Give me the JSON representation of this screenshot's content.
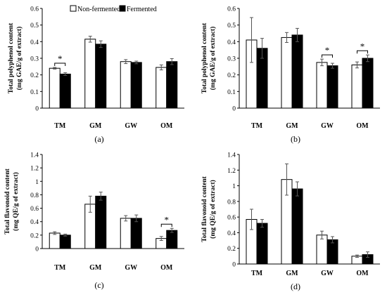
{
  "legend": {
    "non_fermented": "Non-fermented",
    "fermented": "Fermented"
  },
  "colors": {
    "non_fermented": "#ffffff",
    "fermented": "#000000",
    "axis": "#000000"
  },
  "chart_data": [
    {
      "type": "bar",
      "panel_label": "(a)",
      "ylabel_line1": "Total polyphenol content",
      "ylabel_line2": "(mg GAE/g of extract)",
      "categories": [
        "TM",
        "GM",
        "GW",
        "OM"
      ],
      "ylim": [
        0,
        0.6
      ],
      "yticks": [
        0,
        0.1,
        0.2,
        0.3,
        0.4,
        0.5,
        0.6
      ],
      "tick_labels": [
        "0",
        "0.1",
        "0.2",
        "0.3",
        "0.4",
        "0.5",
        "0.6"
      ],
      "series": [
        {
          "name": "Non-fermented",
          "values": [
            0.24,
            0.415,
            0.28,
            0.245
          ],
          "errors": [
            0.005,
            0.018,
            0.012,
            0.015
          ]
        },
        {
          "name": "Fermented",
          "values": [
            0.205,
            0.385,
            0.275,
            0.28
          ],
          "errors": [
            0.008,
            0.02,
            0.008,
            0.018
          ]
        }
      ],
      "significance": [
        {
          "category": "TM",
          "label": "*"
        }
      ],
      "legend": "top"
    },
    {
      "type": "bar",
      "panel_label": "(b)",
      "ylabel_line1": "Total polyphenol content",
      "ylabel_line2": "(mg GAE/g of extract)",
      "categories": [
        "TM",
        "GM",
        "GW",
        "OM"
      ],
      "ylim": [
        0,
        0.6
      ],
      "yticks": [
        0,
        0.1,
        0.2,
        0.3,
        0.4,
        0.5,
        0.6
      ],
      "tick_labels": [
        "0",
        "0.1",
        "0.2",
        "0.3",
        "0.4",
        "0.5",
        "0.6"
      ],
      "series": [
        {
          "name": "Non-fermented",
          "values": [
            0.41,
            0.425,
            0.275,
            0.26
          ],
          "errors": [
            0.135,
            0.03,
            0.02,
            0.018
          ]
        },
        {
          "name": "Fermented",
          "values": [
            0.36,
            0.44,
            0.255,
            0.3
          ],
          "errors": [
            0.06,
            0.04,
            0.015,
            0.02
          ]
        }
      ],
      "significance": [
        {
          "category": "GW",
          "label": "*"
        },
        {
          "category": "OM",
          "label": "*"
        }
      ]
    },
    {
      "type": "bar",
      "panel_label": "(c)",
      "ylabel_line1": "Total flavonoid content",
      "ylabel_line2": "(mg QE/g of extract)",
      "categories": [
        "TM",
        "GM",
        "GW",
        "OM"
      ],
      "ylim": [
        0,
        1.4
      ],
      "yticks": [
        0,
        0.2,
        0.4,
        0.6,
        0.8,
        1,
        1.2,
        1.4
      ],
      "tick_labels": [
        "0",
        "0.2",
        "0.4",
        "0.6",
        "0.8",
        "1",
        "1.2",
        "1.4"
      ],
      "series": [
        {
          "name": "Non-fermented",
          "values": [
            0.23,
            0.66,
            0.45,
            0.15
          ],
          "errors": [
            0.02,
            0.12,
            0.04,
            0.03
          ]
        },
        {
          "name": "Fermented",
          "values": [
            0.2,
            0.78,
            0.45,
            0.27
          ],
          "errors": [
            0.015,
            0.06,
            0.05,
            0.03
          ]
        }
      ],
      "significance": [
        {
          "category": "OM",
          "label": "*"
        }
      ]
    },
    {
      "type": "bar",
      "panel_label": "(d)",
      "ylabel_line1": "Total flavonoid content",
      "ylabel_line2": "(mg QE/g of extract)",
      "categories": [
        "TM",
        "GM",
        "GW",
        "OM"
      ],
      "ylim": [
        0,
        1.4
      ],
      "yticks": [
        0,
        0.2,
        0.4,
        0.6,
        0.8,
        1,
        1.2,
        1.4
      ],
      "tick_labels": [
        "0",
        "0.2",
        "0.4",
        "0.6",
        "0.8",
        "1",
        "1.2",
        "1.4"
      ],
      "series": [
        {
          "name": "Non-fermented",
          "values": [
            0.57,
            1.08,
            0.37,
            0.1
          ],
          "errors": [
            0.13,
            0.2,
            0.05,
            0.015
          ]
        },
        {
          "name": "Fermented",
          "values": [
            0.52,
            0.96,
            0.31,
            0.12
          ],
          "errors": [
            0.05,
            0.09,
            0.04,
            0.035
          ]
        }
      ],
      "significance": []
    }
  ]
}
